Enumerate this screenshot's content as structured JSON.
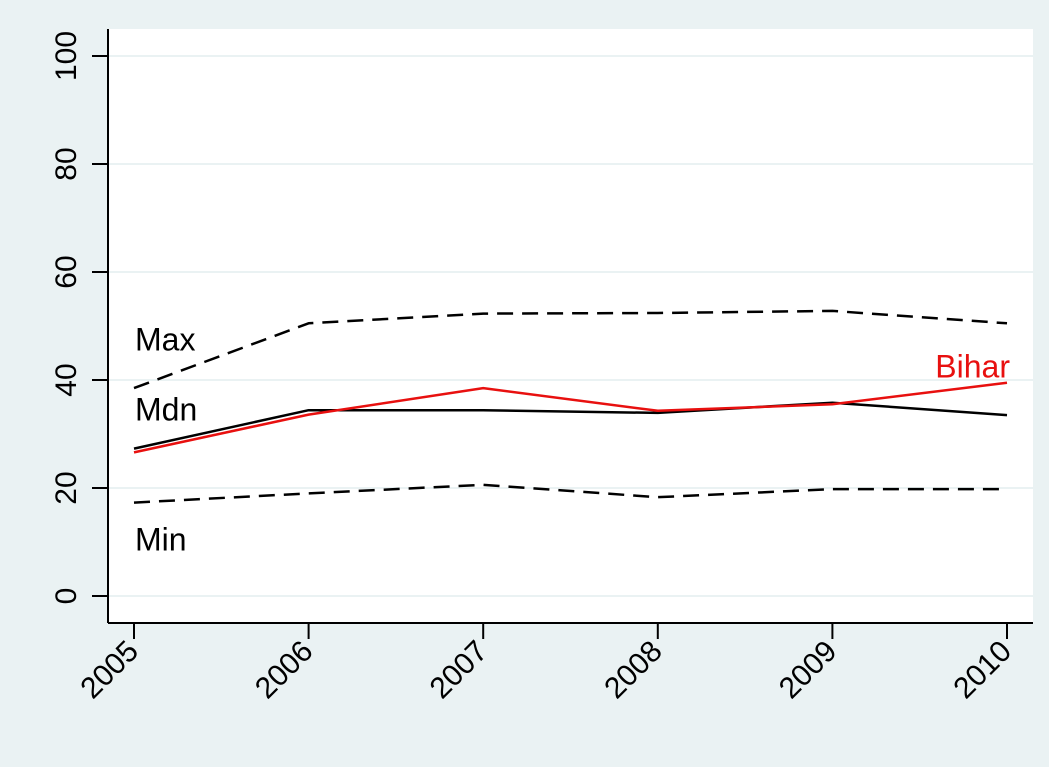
{
  "chart_data": {
    "type": "line",
    "title": "",
    "xlabel": "",
    "ylabel": "",
    "x": [
      2005,
      2006,
      2007,
      2008,
      2009,
      2010
    ],
    "x_tick_labels": [
      "2005",
      "2006",
      "2007",
      "2008",
      "2009",
      "2010"
    ],
    "y_ticks": [
      0,
      20,
      40,
      60,
      80,
      100
    ],
    "y_tick_labels": [
      "0",
      "20",
      "40",
      "60",
      "80",
      "100"
    ],
    "ylim": [
      -5,
      105
    ],
    "grid": true,
    "legend": "none",
    "series": [
      {
        "name": "Max",
        "values": [
          38.5,
          50.5,
          52.3,
          52.4,
          52.8,
          50.5
        ],
        "color": "#000000",
        "style": "dashed"
      },
      {
        "name": "Mdn",
        "values": [
          27.3,
          34.4,
          34.4,
          33.9,
          35.8,
          33.5
        ],
        "color": "#000000",
        "style": "solid"
      },
      {
        "name": "Bihar",
        "values": [
          26.6,
          33.6,
          38.5,
          34.3,
          35.5,
          39.5
        ],
        "color": "#e8100f",
        "style": "solid"
      },
      {
        "name": "Min",
        "values": [
          17.3,
          19.0,
          20.6,
          18.3,
          19.8,
          19.8
        ],
        "color": "#000000",
        "style": "dashed"
      }
    ],
    "annotations": [
      {
        "text": "Max",
        "series": "Max",
        "x": 2005,
        "y": 47.5,
        "color": "#000000"
      },
      {
        "text": "Mdn",
        "series": "Mdn",
        "x": 2005,
        "y": 34.5,
        "color": "#000000"
      },
      {
        "text": "Min",
        "series": "Min",
        "x": 2005,
        "y": 10.5,
        "color": "#000000"
      },
      {
        "text": "Bihar",
        "series": "Bihar",
        "x": 2010,
        "y": 42.5,
        "color": "#e8100f"
      }
    ],
    "colors": {
      "outer_background": "#eaf2f3",
      "plot_background": "#ffffff",
      "gridline": "#eaf2f3",
      "axis": "#000000"
    }
  }
}
